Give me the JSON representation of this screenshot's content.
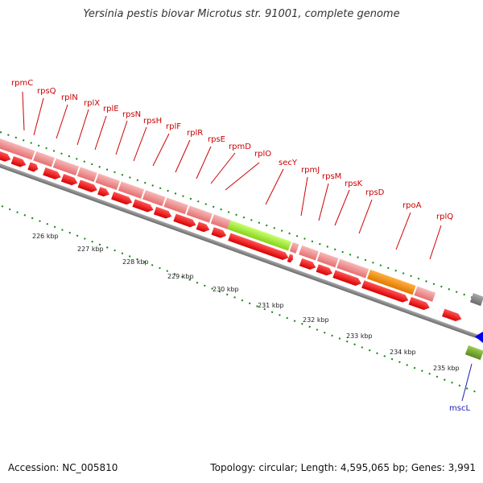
{
  "title": "Yersinia pestis biovar Microtus str. 91001, complete genome",
  "footer": {
    "accession": "Accession: NC_005810",
    "topology": "Topology: circular; Length: 4,595,065 bp; Genes: 3,991"
  },
  "colors": {
    "cds": "#ee0000",
    "ribosomal_track": "#f09090",
    "secy": "#a6ee40",
    "rpoa": "#ff8c00",
    "backbone": "#8c8c8c",
    "tick": "#118811",
    "label_red": "#cc0000",
    "label_blue": "#1a1ab3"
  },
  "kbp_ticks": [
    "226 kbp",
    "227 kbp",
    "228 kbp",
    "229 kbp",
    "230 kbp",
    "231 kbp",
    "232 kbp",
    "233 kbp",
    "234 kbp",
    "235 kbp"
  ],
  "gene_labels": [
    {
      "name": "rpmC"
    },
    {
      "name": "rpsQ"
    },
    {
      "name": "rplN"
    },
    {
      "name": "rplX"
    },
    {
      "name": "rplE"
    },
    {
      "name": "rpsN"
    },
    {
      "name": "rpsH"
    },
    {
      "name": "rplF"
    },
    {
      "name": "rplR"
    },
    {
      "name": "rpsE"
    },
    {
      "name": "rpmD"
    },
    {
      "name": "rplO"
    },
    {
      "name": "secY"
    },
    {
      "name": "rpmJ"
    },
    {
      "name": "rpsM"
    },
    {
      "name": "rpsK"
    },
    {
      "name": "rpsD"
    },
    {
      "name": "rpoA"
    },
    {
      "name": "rplQ"
    },
    {
      "name": "mscL"
    }
  ]
}
